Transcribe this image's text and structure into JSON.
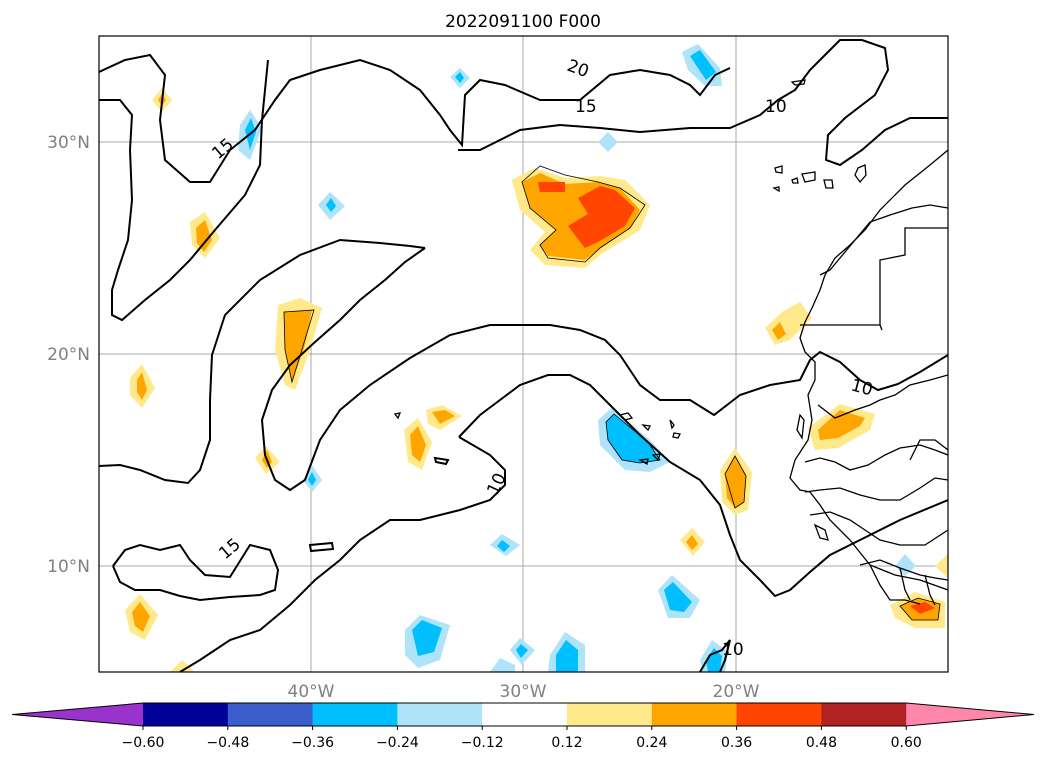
{
  "title": "2022091100 F000",
  "map": {
    "lat_labels": [
      "30°N",
      "20°N",
      "10°N"
    ],
    "lon_labels": [
      "40°W",
      "30°W",
      "20°W"
    ],
    "contour_labels": [
      "20",
      "15",
      "10",
      "15",
      "10",
      "10",
      "15",
      "10"
    ]
  },
  "colorbar": {
    "ticks": [
      "−0.60",
      "−0.48",
      "−0.36",
      "−0.24",
      "−0.12",
      "0.12",
      "0.24",
      "0.36",
      "0.48",
      "0.60"
    ],
    "colors": [
      "#9933cc",
      "#000099",
      "#3a5fcd",
      "#00bfff",
      "#aee3fa",
      "#ffffff",
      "#ffe98a",
      "#ffa500",
      "#ff4500",
      "#b22222",
      "#ff88aa"
    ]
  }
}
